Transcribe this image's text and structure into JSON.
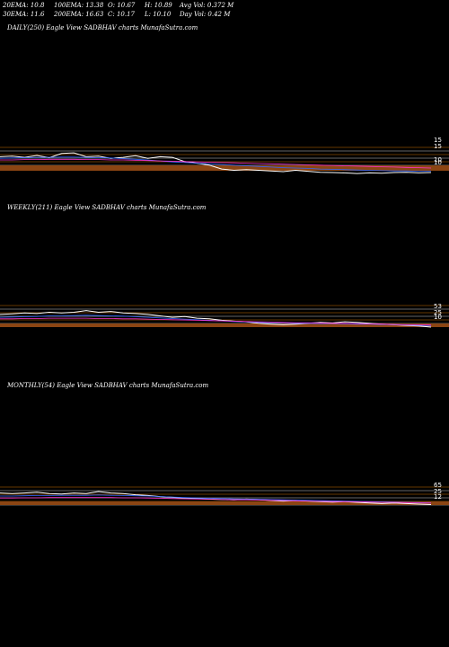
{
  "header": {
    "ema20": "20EMA: 10.8",
    "ema30": "30EMA: 11.6",
    "ema100": "100EMA: 13.38",
    "ema200": "200EMA: 16.63",
    "open": "O: 10.67",
    "close": "C: 10.17",
    "high": "H: 10.89",
    "low": "L: 10.10",
    "avg_vol": "Avg Vol: 0.372  M",
    "day_vol": "Day Vol: 0.42  M"
  },
  "colors": {
    "background": "#000000",
    "price": "#ffffff",
    "volume_bar": "#8b4513",
    "grid_line": "#ff8c00",
    "ema_blue": "#3366ff",
    "ema_magenta": "#ff33cc",
    "ema_gray": "#888888"
  },
  "chart_data": [
    {
      "type": "line",
      "title": "DAILY(250) Eagle   View  SADBHAV charts MunafaSutra.com",
      "tick_labels": [
        "15",
        "15",
        "10",
        "10"
      ],
      "series": [
        {
          "values": [
            0.6,
            0.62,
            0.58,
            0.64,
            0.57,
            0.7,
            0.72,
            0.6,
            0.62,
            0.55,
            0.58,
            0.63,
            0.55,
            0.6,
            0.58,
            0.45,
            0.4,
            0.34,
            0.22,
            0.18,
            0.2,
            0.18,
            0.16,
            0.14,
            0.18,
            0.15,
            0.12,
            0.11,
            0.1,
            0.08,
            0.1,
            0.09,
            0.11,
            0.12,
            0.1,
            0.11
          ]
        },
        {
          "values": [
            0.55,
            0.56,
            0.57,
            0.58,
            0.58,
            0.59,
            0.59,
            0.58,
            0.57,
            0.56,
            0.54,
            0.52,
            0.5,
            0.47,
            0.44,
            0.42,
            0.4,
            0.38,
            0.36,
            0.34,
            0.32,
            0.3,
            0.28,
            0.26,
            0.25,
            0.24,
            0.22,
            0.21,
            0.2,
            0.19,
            0.18,
            0.17,
            0.16,
            0.16,
            0.15,
            0.15
          ]
        },
        {
          "values": [
            0.5,
            0.5,
            0.51,
            0.51,
            0.52,
            0.52,
            0.52,
            0.51,
            0.51,
            0.5,
            0.5,
            0.49,
            0.48,
            0.47,
            0.46,
            0.45,
            0.44,
            0.43,
            0.42,
            0.41,
            0.4,
            0.39,
            0.38,
            0.37,
            0.36,
            0.35,
            0.34,
            0.33,
            0.32,
            0.31,
            0.3,
            0.29,
            0.28,
            0.27,
            0.26,
            0.25
          ]
        }
      ]
    },
    {
      "type": "line",
      "title": "WEEKLY(211) Eagle   View  SADBHAV charts MunafaSutra.com",
      "tick_labels": [
        "53",
        "25",
        "10"
      ],
      "series": [
        {
          "values": [
            0.55,
            0.57,
            0.6,
            0.58,
            0.62,
            0.6,
            0.62,
            0.68,
            0.62,
            0.65,
            0.6,
            0.58,
            0.55,
            0.5,
            0.45,
            0.48,
            0.42,
            0.4,
            0.35,
            0.32,
            0.3,
            0.25,
            0.22,
            0.2,
            0.22,
            0.25,
            0.28,
            0.26,
            0.3,
            0.28,
            0.25,
            0.22,
            0.2,
            0.18,
            0.16,
            0.12
          ]
        },
        {
          "values": [
            0.45,
            0.46,
            0.47,
            0.48,
            0.5,
            0.5,
            0.51,
            0.52,
            0.51,
            0.5,
            0.49,
            0.47,
            0.45,
            0.43,
            0.41,
            0.39,
            0.37,
            0.35,
            0.33,
            0.31,
            0.3,
            0.28,
            0.27,
            0.26,
            0.25,
            0.25,
            0.24,
            0.24,
            0.23,
            0.22,
            0.22,
            0.21,
            0.2,
            0.19,
            0.18,
            0.17
          ]
        },
        {
          "values": [
            0.4,
            0.4,
            0.41,
            0.41,
            0.42,
            0.42,
            0.42,
            0.42,
            0.41,
            0.41,
            0.4,
            0.4,
            0.39,
            0.38,
            0.37,
            0.36,
            0.35,
            0.34,
            0.33,
            0.32,
            0.31,
            0.3,
            0.29,
            0.28,
            0.27,
            0.27,
            0.26,
            0.25,
            0.25,
            0.24,
            0.23,
            0.22,
            0.21,
            0.2,
            0.2,
            0.19
          ]
        }
      ]
    },
    {
      "type": "line",
      "title": "MONTHLY(54) Eagle   View  SADBHAV charts MunafaSutra.com",
      "tick_labels": [
        "65",
        "25",
        "12"
      ],
      "series": [
        {
          "values": [
            0.62,
            0.6,
            0.62,
            0.65,
            0.6,
            0.58,
            0.62,
            0.6,
            0.68,
            0.62,
            0.6,
            0.55,
            0.52,
            0.48,
            0.45,
            0.42,
            0.4,
            0.38,
            0.36,
            0.35,
            0.38,
            0.36,
            0.32,
            0.3,
            0.32,
            0.3,
            0.28,
            0.26,
            0.28,
            0.25,
            0.22,
            0.2,
            0.22,
            0.2,
            0.18,
            0.16
          ]
        },
        {
          "values": [
            0.5,
            0.5,
            0.51,
            0.52,
            0.52,
            0.53,
            0.53,
            0.53,
            0.54,
            0.53,
            0.52,
            0.51,
            0.5,
            0.48,
            0.46,
            0.44,
            0.42,
            0.41,
            0.4,
            0.39,
            0.38,
            0.37,
            0.36,
            0.35,
            0.34,
            0.33,
            0.32,
            0.31,
            0.3,
            0.29,
            0.28,
            0.27,
            0.26,
            0.25,
            0.24,
            0.23
          ]
        },
        {
          "values": [
            0.42,
            0.42,
            0.43,
            0.43,
            0.44,
            0.44,
            0.44,
            0.44,
            0.44,
            0.44,
            0.43,
            0.43,
            0.42,
            0.41,
            0.4,
            0.39,
            0.38,
            0.37,
            0.36,
            0.35,
            0.35,
            0.34,
            0.33,
            0.32,
            0.31,
            0.3,
            0.29,
            0.28,
            0.28,
            0.27,
            0.26,
            0.25,
            0.25,
            0.24,
            0.23,
            0.22
          ]
        }
      ]
    }
  ]
}
